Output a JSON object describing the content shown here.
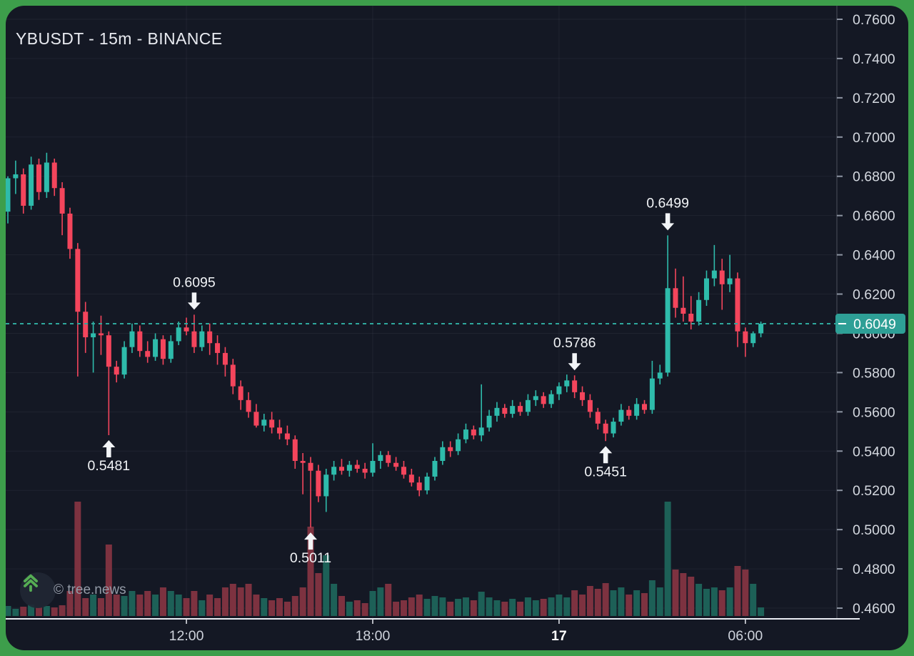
{
  "meta": {
    "title": "YBUSDT - 15m - BINANCE",
    "watermark_text": "© tree.news"
  },
  "colors": {
    "frame_green": "#3d9e4b",
    "panel_bg": "#141824",
    "grid": "rgba(240,243,250,0.055)",
    "candle_up": "#2ebbab",
    "candle_down": "#f4455c",
    "volume_up": "#1d6057",
    "volume_down": "#7d3240",
    "accent_teal": "#2fa89d",
    "price_label_bg": "#2e9f96",
    "axis_text": "#d5d9e0",
    "time_text": "#ced3dc",
    "time_text_bold": "#ffffff",
    "separator": "#e9ecf2",
    "tick": "#8e95a3",
    "title_text": "#e8eaf0",
    "annotation_text": "#f2f4f7",
    "watermark_text": "#959ca8",
    "logo_green": "#55ad53",
    "logo_circle_bg": "rgba(32,39,52,0.9)"
  },
  "chart_data": {
    "type": "candlestick",
    "symbol": "YBUSDT",
    "interval": "15m",
    "exchange": "BINANCE",
    "title": "YBUSDT - 15m - BINANCE",
    "legend_position": "none",
    "grid": true,
    "current_price": {
      "value": 0.6049,
      "text": "0.6049"
    },
    "y_axis": {
      "min": 0.46,
      "max": 0.76,
      "step": 0.02,
      "labels": [
        {
          "value": 0.76,
          "text": "0.7600"
        },
        {
          "value": 0.74,
          "text": "0.7400"
        },
        {
          "value": 0.72,
          "text": "0.7200"
        },
        {
          "value": 0.7,
          "text": "0.7000"
        },
        {
          "value": 0.68,
          "text": "0.6800"
        },
        {
          "value": 0.66,
          "text": "0.6600"
        },
        {
          "value": 0.64,
          "text": "0.6400"
        },
        {
          "value": 0.62,
          "text": "0.6200"
        },
        {
          "value": 0.6,
          "text": "0.6000"
        },
        {
          "value": 0.58,
          "text": "0.5800"
        },
        {
          "value": 0.56,
          "text": "0.5600"
        },
        {
          "value": 0.54,
          "text": "0.5400"
        },
        {
          "value": 0.52,
          "text": "0.5200"
        },
        {
          "value": 0.5,
          "text": "0.5000"
        },
        {
          "value": 0.48,
          "text": "0.4800"
        },
        {
          "value": 0.46,
          "text": "0.4600"
        }
      ]
    },
    "x_axis": {
      "labels": [
        {
          "index": 23,
          "text": "12:00",
          "bold": false
        },
        {
          "index": 47,
          "text": "18:00",
          "bold": false
        },
        {
          "index": 71,
          "text": "17",
          "bold": true
        },
        {
          "index": 95,
          "text": "06:00",
          "bold": false
        }
      ]
    },
    "annotations": [
      {
        "index": 13,
        "price": 0.5481,
        "text": "0.5481",
        "direction": "up"
      },
      {
        "index": 24,
        "price": 0.6095,
        "text": "0.6095",
        "direction": "down"
      },
      {
        "index": 39,
        "price": 0.5011,
        "text": "0.5011",
        "direction": "up"
      },
      {
        "index": 73,
        "price": 0.5786,
        "text": "0.5786",
        "direction": "down"
      },
      {
        "index": 77,
        "price": 0.5451,
        "text": "0.5451",
        "direction": "up"
      },
      {
        "index": 85,
        "price": 0.6499,
        "text": "0.6499",
        "direction": "down"
      }
    ],
    "candle_format": [
      "open",
      "high",
      "low",
      "close",
      "volume_relative"
    ],
    "candles": [
      [
        0.662,
        0.68,
        0.656,
        0.679,
        14
      ],
      [
        0.679,
        0.688,
        0.671,
        0.681,
        10
      ],
      [
        0.681,
        0.684,
        0.661,
        0.665,
        13
      ],
      [
        0.665,
        0.69,
        0.663,
        0.686,
        16
      ],
      [
        0.686,
        0.689,
        0.668,
        0.672,
        12
      ],
      [
        0.672,
        0.692,
        0.669,
        0.687,
        14
      ],
      [
        0.687,
        0.689,
        0.67,
        0.674,
        12
      ],
      [
        0.674,
        0.677,
        0.65,
        0.661,
        15
      ],
      [
        0.661,
        0.664,
        0.638,
        0.643,
        35
      ],
      [
        0.643,
        0.646,
        0.578,
        0.611,
        160
      ],
      [
        0.611,
        0.616,
        0.59,
        0.598,
        25
      ],
      [
        0.598,
        0.606,
        0.58,
        0.6,
        30
      ],
      [
        0.6,
        0.609,
        0.589,
        0.599,
        25
      ],
      [
        0.599,
        0.601,
        0.5481,
        0.583,
        100
      ],
      [
        0.583,
        0.586,
        0.575,
        0.579,
        30
      ],
      [
        0.579,
        0.596,
        0.577,
        0.593,
        28
      ],
      [
        0.593,
        0.605,
        0.59,
        0.601,
        35
      ],
      [
        0.601,
        0.604,
        0.588,
        0.591,
        30
      ],
      [
        0.591,
        0.596,
        0.585,
        0.588,
        35
      ],
      [
        0.588,
        0.6,
        0.586,
        0.597,
        30
      ],
      [
        0.597,
        0.599,
        0.584,
        0.587,
        40
      ],
      [
        0.587,
        0.599,
        0.585,
        0.596,
        35
      ],
      [
        0.596,
        0.606,
        0.594,
        0.603,
        30
      ],
      [
        0.603,
        0.608,
        0.599,
        0.601,
        25
      ],
      [
        0.601,
        0.6095,
        0.59,
        0.593,
        35
      ],
      [
        0.593,
        0.604,
        0.591,
        0.601,
        22
      ],
      [
        0.601,
        0.605,
        0.589,
        0.595,
        30
      ],
      [
        0.595,
        0.599,
        0.584,
        0.59,
        25
      ],
      [
        0.59,
        0.593,
        0.578,
        0.584,
        40
      ],
      [
        0.584,
        0.587,
        0.569,
        0.573,
        45
      ],
      [
        0.573,
        0.576,
        0.561,
        0.566,
        40
      ],
      [
        0.566,
        0.57,
        0.557,
        0.56,
        45
      ],
      [
        0.56,
        0.564,
        0.552,
        0.553,
        30
      ],
      [
        0.553,
        0.559,
        0.55,
        0.556,
        25
      ],
      [
        0.556,
        0.56,
        0.549,
        0.552,
        22
      ],
      [
        0.552,
        0.556,
        0.546,
        0.549,
        25
      ],
      [
        0.549,
        0.553,
        0.543,
        0.546,
        20
      ],
      [
        0.546,
        0.548,
        0.531,
        0.535,
        28
      ],
      [
        0.535,
        0.539,
        0.518,
        0.534,
        40
      ],
      [
        0.534,
        0.537,
        0.5011,
        0.53,
        125
      ],
      [
        0.53,
        0.533,
        0.514,
        0.517,
        60
      ],
      [
        0.517,
        0.531,
        0.509,
        0.528,
        85
      ],
      [
        0.528,
        0.535,
        0.525,
        0.532,
        45
      ],
      [
        0.532,
        0.536,
        0.528,
        0.53,
        28
      ],
      [
        0.53,
        0.535,
        0.527,
        0.533,
        20
      ],
      [
        0.533,
        0.5355,
        0.529,
        0.531,
        22
      ],
      [
        0.531,
        0.534,
        0.526,
        0.529,
        18
      ],
      [
        0.529,
        0.544,
        0.527,
        0.535,
        35
      ],
      [
        0.535,
        0.54,
        0.531,
        0.538,
        40
      ],
      [
        0.538,
        0.54,
        0.532,
        0.534,
        45
      ],
      [
        0.534,
        0.537,
        0.53,
        0.532,
        20
      ],
      [
        0.532,
        0.535,
        0.526,
        0.528,
        22
      ],
      [
        0.528,
        0.531,
        0.522,
        0.524,
        26
      ],
      [
        0.524,
        0.527,
        0.517,
        0.52,
        30
      ],
      [
        0.52,
        0.529,
        0.518,
        0.527,
        24
      ],
      [
        0.527,
        0.537,
        0.525,
        0.535,
        28
      ],
      [
        0.535,
        0.545,
        0.533,
        0.542,
        26
      ],
      [
        0.542,
        0.545,
        0.537,
        0.54,
        20
      ],
      [
        0.54,
        0.549,
        0.538,
        0.546,
        24
      ],
      [
        0.546,
        0.554,
        0.544,
        0.551,
        26
      ],
      [
        0.551,
        0.553,
        0.546,
        0.548,
        22
      ],
      [
        0.548,
        0.574,
        0.545,
        0.552,
        34
      ],
      [
        0.552,
        0.561,
        0.55,
        0.558,
        26
      ],
      [
        0.558,
        0.565,
        0.555,
        0.562,
        22
      ],
      [
        0.562,
        0.564,
        0.557,
        0.559,
        20
      ],
      [
        0.559,
        0.566,
        0.557,
        0.563,
        24
      ],
      [
        0.563,
        0.565,
        0.558,
        0.56,
        20
      ],
      [
        0.56,
        0.569,
        0.558,
        0.566,
        26
      ],
      [
        0.566,
        0.571,
        0.563,
        0.568,
        22
      ],
      [
        0.568,
        0.57,
        0.562,
        0.564,
        24
      ],
      [
        0.564,
        0.571,
        0.562,
        0.569,
        26
      ],
      [
        0.569,
        0.575,
        0.566,
        0.573,
        30
      ],
      [
        0.573,
        0.579,
        0.57,
        0.576,
        26
      ],
      [
        0.576,
        0.5786,
        0.567,
        0.57,
        36
      ],
      [
        0.57,
        0.573,
        0.563,
        0.566,
        30
      ],
      [
        0.566,
        0.569,
        0.557,
        0.56,
        42
      ],
      [
        0.56,
        0.562,
        0.551,
        0.554,
        38
      ],
      [
        0.554,
        0.556,
        0.5451,
        0.549,
        46
      ],
      [
        0.549,
        0.557,
        0.547,
        0.555,
        36
      ],
      [
        0.555,
        0.564,
        0.553,
        0.561,
        40
      ],
      [
        0.561,
        0.563,
        0.556,
        0.558,
        30
      ],
      [
        0.558,
        0.567,
        0.556,
        0.564,
        36
      ],
      [
        0.564,
        0.566,
        0.559,
        0.561,
        32
      ],
      [
        0.561,
        0.586,
        0.559,
        0.577,
        50
      ],
      [
        0.577,
        0.584,
        0.574,
        0.58,
        40
      ],
      [
        0.58,
        0.6499,
        0.578,
        0.623,
        160
      ],
      [
        0.623,
        0.633,
        0.608,
        0.613,
        65
      ],
      [
        0.613,
        0.629,
        0.606,
        0.61,
        60
      ],
      [
        0.61,
        0.619,
        0.602,
        0.606,
        55
      ],
      [
        0.606,
        0.621,
        0.604,
        0.617,
        45
      ],
      [
        0.617,
        0.632,
        0.614,
        0.628,
        38
      ],
      [
        0.628,
        0.645,
        0.624,
        0.632,
        40
      ],
      [
        0.632,
        0.638,
        0.612,
        0.625,
        36
      ],
      [
        0.625,
        0.64,
        0.621,
        0.628,
        40
      ],
      [
        0.628,
        0.631,
        0.593,
        0.601,
        70
      ],
      [
        0.601,
        0.603,
        0.588,
        0.595,
        65
      ],
      [
        0.595,
        0.601,
        0.593,
        0.6,
        45
      ],
      [
        0.6,
        0.606,
        0.598,
        0.6049,
        12
      ]
    ]
  }
}
